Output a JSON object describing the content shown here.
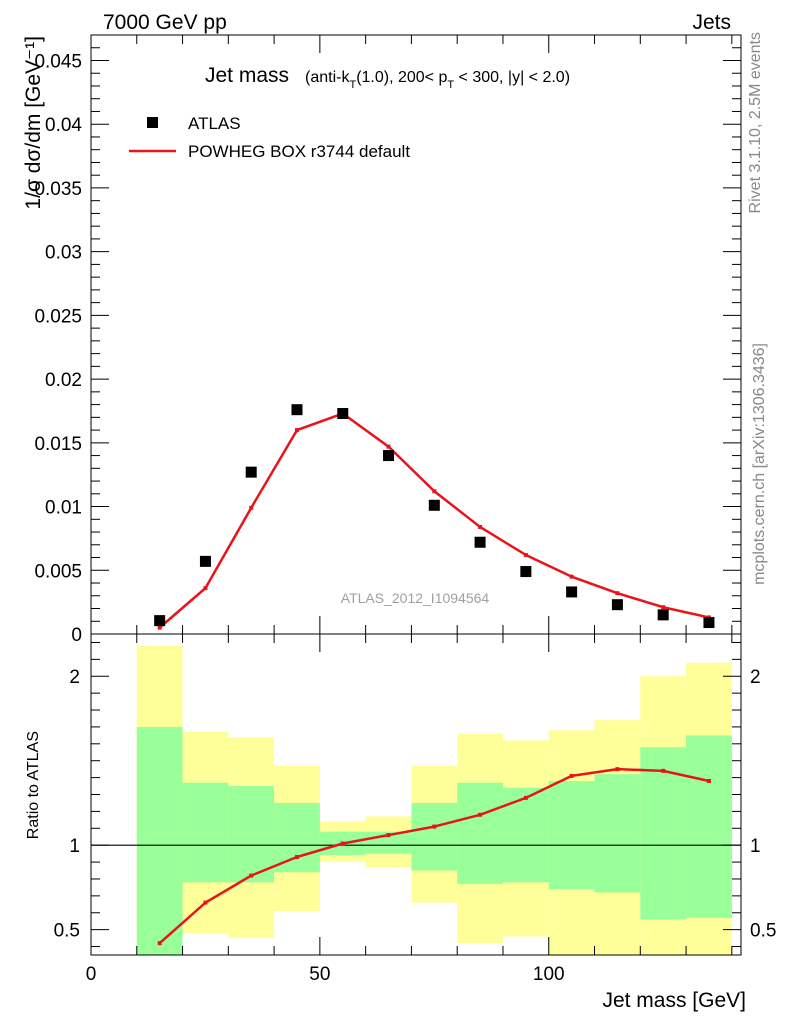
{
  "header": {
    "left": "7000 GeV pp",
    "right": "Jets"
  },
  "side_labels": {
    "rivet": "Rivet 3.1.10,  2.5M events",
    "mcplots": "mcplots.cern.ch [arXiv:1306.3436]"
  },
  "chart_data": [
    {
      "type": "scatter+line",
      "title_main": "Jet mass",
      "title_detail": "(anti-k_T(1.0), 200< p_T < 300, |y| < 2.0)",
      "ylabel": "1/σ dσ/dm [GeV⁻¹]",
      "ylim": [
        0,
        0.047
      ],
      "yticks": [
        "0",
        "0.005",
        "0.01",
        "0.015",
        "0.02",
        "0.025",
        "0.03",
        "0.035",
        "0.04",
        "0.045"
      ],
      "ytick_values": [
        0,
        0.005,
        0.01,
        0.015,
        0.02,
        0.025,
        0.03,
        0.035,
        0.04,
        0.045
      ],
      "watermark": "ATLAS_2012_I1094564",
      "legend": {
        "data_label": "ATLAS",
        "mc_label": "POWHEG BOX r3744 default",
        "placement": "top-left"
      },
      "x": [
        15,
        25,
        35,
        45,
        55,
        65,
        75,
        85,
        95,
        105,
        115,
        125,
        135
      ],
      "series": [
        {
          "name": "ATLAS",
          "color": "#000000",
          "values": [
            0.00105,
            0.0057,
            0.0127,
            0.0176,
            0.0173,
            0.014,
            0.0101,
            0.0072,
            0.0049,
            0.0033,
            0.0023,
            0.0015,
            0.0009
          ]
        },
        {
          "name": "POWHEG BOX r3744 default",
          "color": "#e8141a",
          "values": [
            0.0005,
            0.0036,
            0.0099,
            0.016,
            0.0173,
            0.0147,
            0.0112,
            0.0084,
            0.0062,
            0.0045,
            0.0032,
            0.0021,
            0.0013
          ]
        }
      ]
    },
    {
      "type": "ratio",
      "ylabel": "Ratio to ATLAS",
      "xlabel": "Jet mass [GeV]",
      "xlim": [
        0,
        142
      ],
      "xticks": [
        "0",
        "50",
        "100"
      ],
      "xtick_values": [
        0,
        50,
        100
      ],
      "ylim": [
        0.35,
        2.25
      ],
      "yticks": [
        "0.5",
        "1",
        "2"
      ],
      "ytick_values": [
        0.5,
        1,
        2
      ],
      "band_colors": {
        "inner": "#99ff99",
        "outer": "#ffff99"
      },
      "bins": [
        [
          10,
          20
        ],
        [
          20,
          30
        ],
        [
          30,
          40
        ],
        [
          40,
          50
        ],
        [
          50,
          60
        ],
        [
          60,
          70
        ],
        [
          70,
          80
        ],
        [
          80,
          90
        ],
        [
          90,
          100
        ],
        [
          100,
          110
        ],
        [
          110,
          120
        ],
        [
          120,
          130
        ],
        [
          130,
          140
        ]
      ],
      "inner_band": [
        [
          0.35,
          1.7
        ],
        [
          0.78,
          1.37
        ],
        [
          0.78,
          1.35
        ],
        [
          0.84,
          1.25
        ],
        [
          0.94,
          1.08
        ],
        [
          0.95,
          1.08
        ],
        [
          0.85,
          1.25
        ],
        [
          0.77,
          1.37
        ],
        [
          0.78,
          1.34
        ],
        [
          0.74,
          1.38
        ],
        [
          0.72,
          1.42
        ],
        [
          0.56,
          1.58
        ],
        [
          0.57,
          1.65
        ]
      ],
      "outer_band": [
        [
          0.35,
          2.18
        ],
        [
          0.48,
          1.67
        ],
        [
          0.45,
          1.64
        ],
        [
          0.61,
          1.47
        ],
        [
          0.9,
          1.14
        ],
        [
          0.87,
          1.17
        ],
        [
          0.66,
          1.47
        ],
        [
          0.42,
          1.66
        ],
        [
          0.46,
          1.62
        ],
        [
          0.35,
          1.68
        ],
        [
          0.35,
          1.74
        ],
        [
          0.35,
          2.0
        ],
        [
          0.35,
          2.08
        ]
      ],
      "x": [
        15,
        25,
        35,
        45,
        55,
        65,
        75,
        85,
        95,
        105,
        115,
        125,
        135
      ],
      "values": [
        0.42,
        0.66,
        0.82,
        0.93,
        1.01,
        1.06,
        1.11,
        1.18,
        1.28,
        1.41,
        1.45,
        1.44,
        1.38
      ]
    }
  ]
}
